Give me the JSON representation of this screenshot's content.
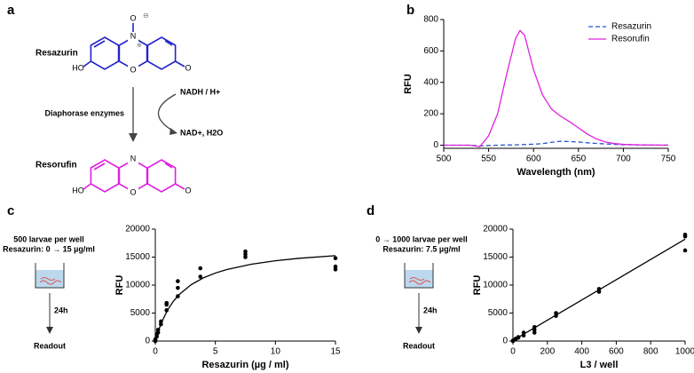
{
  "panels": [
    "a",
    "b",
    "c",
    "d"
  ],
  "scheme": {
    "substrate": "Resazurin",
    "product": "Resorufin",
    "cofactor_in": "NADH / H+",
    "cofactor_out": "NAD+, H2O",
    "enzyme": "Diaphorase enzymes",
    "atoms_top": [
      "N",
      "O",
      "HO",
      "O",
      "O",
      "⊖",
      "⊕"
    ],
    "atoms_bottom": [
      "N",
      "O",
      "HO",
      "O"
    ]
  },
  "protocols": [
    {
      "lines": [
        "500 larvae per well",
        "Resazurin: 0 → 15 µg/ml"
      ],
      "time": "24h",
      "readout": "Readout"
    },
    {
      "lines": [
        "0 → 1000 larvae per well",
        "Resazurin: 7.5 µg/ml"
      ],
      "time": "24h",
      "readout": "Readout"
    }
  ],
  "chart_data": [
    {
      "type": "line",
      "x": [
        500,
        510,
        520,
        530,
        540,
        550,
        560,
        570,
        580,
        585,
        590,
        600,
        610,
        620,
        630,
        640,
        650,
        660,
        670,
        680,
        690,
        700,
        720,
        750
      ],
      "series": [
        {
          "name": "Resazurin",
          "color": "#2255cc",
          "linestyle": "dashed",
          "values": [
            0,
            0,
            0,
            0,
            -5,
            -2,
            0,
            1,
            2,
            3,
            4,
            6,
            10,
            18,
            25,
            23,
            20,
            15,
            11,
            8,
            5,
            3,
            1,
            0
          ]
        },
        {
          "name": "Resorufin",
          "color": "#e020e0",
          "linestyle": "solid",
          "values": [
            0,
            0,
            0,
            0,
            -10,
            60,
            200,
            450,
            680,
            730,
            700,
            480,
            320,
            230,
            185,
            150,
            110,
            70,
            40,
            20,
            10,
            5,
            2,
            0
          ]
        }
      ],
      "xlim": [
        500,
        750
      ],
      "xticks": [
        500,
        550,
        600,
        650,
        700,
        750
      ],
      "ylim": [
        -20,
        800
      ],
      "yticks": [
        0,
        200,
        400,
        600,
        800
      ],
      "xlabel": "Wavelength (nm)",
      "ylabel": "RFU",
      "legend": "upper right"
    },
    {
      "type": "scatter",
      "series": [
        {
          "mode": "markers",
          "color": "#000000",
          "x": [
            0,
            0,
            0,
            0.12,
            0.12,
            0.23,
            0.23,
            0.47,
            0.47,
            0.94,
            0.94,
            0.94,
            1.875,
            1.875,
            1.875,
            3.75,
            3.75,
            7.5,
            7.5,
            7.5,
            15,
            15,
            15
          ],
          "values": [
            0,
            150,
            300,
            800,
            1200,
            1500,
            2000,
            3000,
            3500,
            5500,
            6500,
            6800,
            8000,
            9500,
            10700,
            11500,
            13000,
            15000,
            15500,
            16000,
            12800,
            13300,
            14800
          ]
        },
        {
          "mode": "line",
          "color": "#000000",
          "x": [
            0,
            0.25,
            0.5,
            1,
            1.5,
            2,
            3,
            4,
            5,
            6,
            8,
            10,
            12,
            15
          ],
          "values": [
            0,
            1786,
            3241,
            5469,
            7095,
            8333,
            10096,
            11290,
            12153,
            12805,
            13725,
            14344,
            14789,
            15262
          ]
        }
      ],
      "xlim": [
        0,
        15
      ],
      "xticks": [
        0,
        5,
        10,
        15
      ],
      "ylim": [
        0,
        20000
      ],
      "yticks": [
        0,
        5000,
        10000,
        15000,
        20000
      ],
      "xlabel": "Resazurin (µg / ml)",
      "ylabel": "RFU"
    },
    {
      "type": "scatter",
      "series": [
        {
          "mode": "markers",
          "color": "#000000",
          "x": [
            0,
            0,
            15.6,
            15.6,
            31,
            31,
            62,
            62,
            125,
            125,
            125,
            250,
            250,
            500,
            500,
            1000,
            1000,
            1000
          ],
          "values": [
            0,
            100,
            300,
            400,
            600,
            700,
            1000,
            1500,
            1500,
            2000,
            2500,
            4500,
            5000,
            8800,
            9300,
            16200,
            18700,
            19000
          ]
        },
        {
          "mode": "line",
          "color": "#000000",
          "x": [
            0,
            1000
          ],
          "values": [
            100,
            18200
          ]
        }
      ],
      "xlim": [
        0,
        1000
      ],
      "xticks": [
        0,
        200,
        400,
        600,
        800,
        1000
      ],
      "ylim": [
        0,
        20000
      ],
      "yticks": [
        0,
        5000,
        10000,
        15000,
        20000
      ],
      "xlabel": "L3 / well",
      "ylabel": "RFU"
    }
  ]
}
